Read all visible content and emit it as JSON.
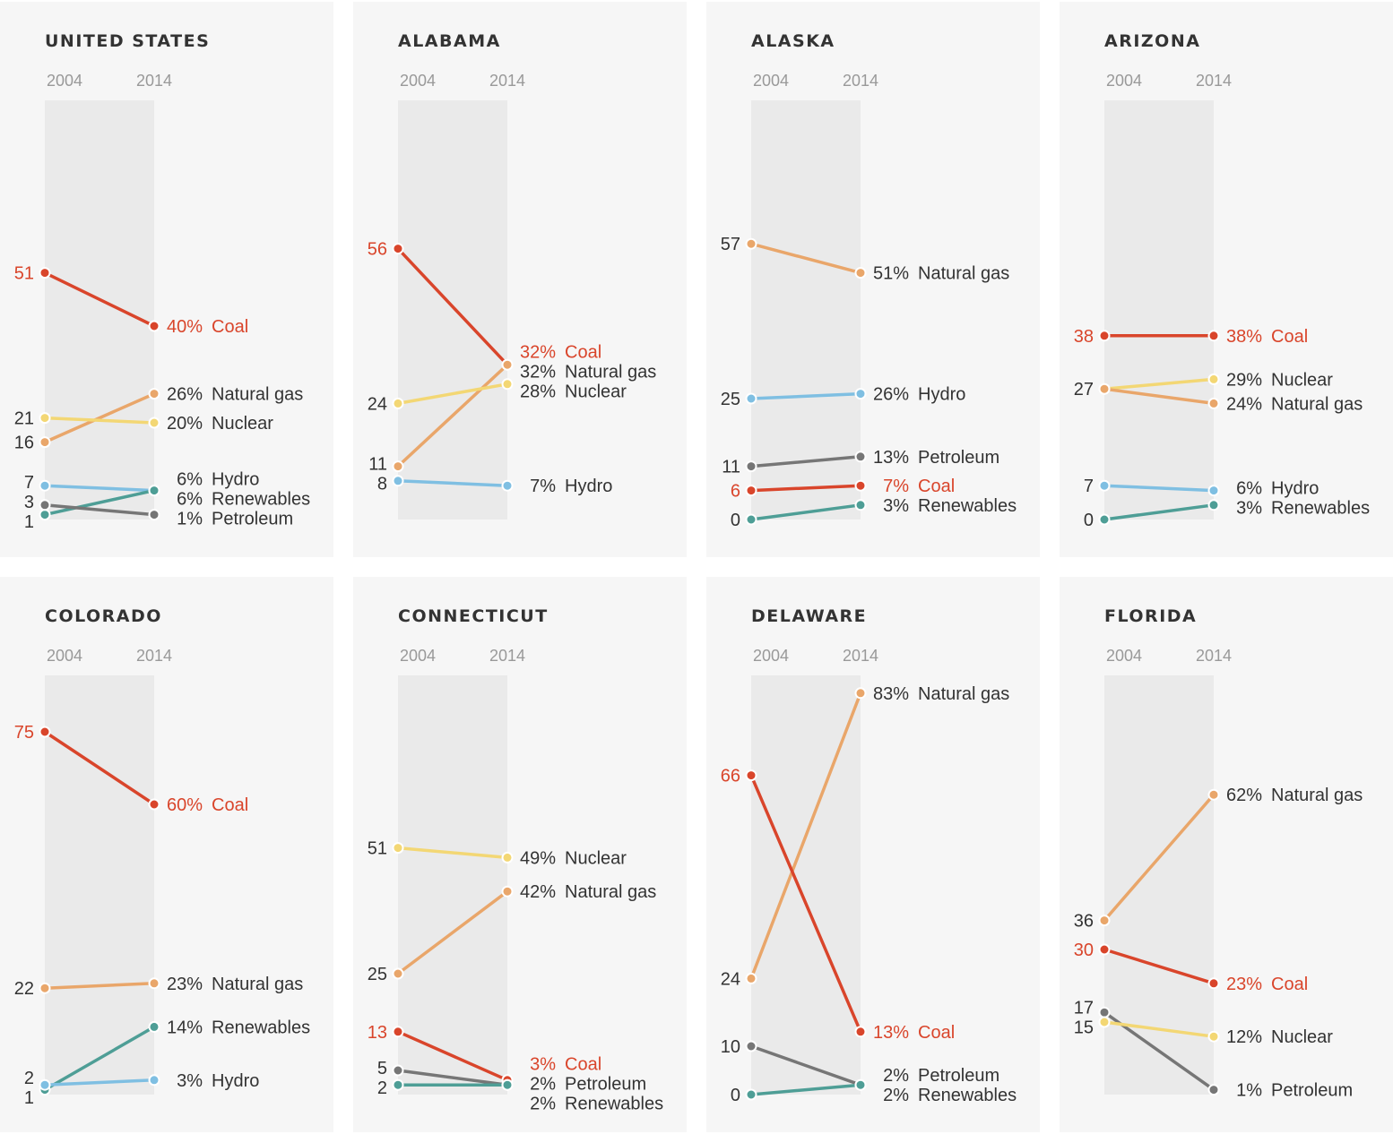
{
  "colors": {
    "Coal": "#d9452b",
    "Natural gas": "#e9a66a",
    "Nuclear": "#f3d774",
    "Hydro": "#7fbfe2",
    "Renewables": "#4e9e96",
    "Petroleum": "#767676",
    "text": "#333333",
    "muted": "#999999",
    "panel_bg": "#f6f6f6",
    "band_bg": "#eaeaea"
  },
  "chart_data": [
    {
      "type": "line",
      "title": "UNITED STATES",
      "x": [
        "2004",
        "2014"
      ],
      "series": [
        {
          "name": "Coal",
          "values": [
            51,
            40
          ],
          "start_label": "51",
          "end_label": "40%"
        },
        {
          "name": "Natural gas",
          "values": [
            16,
            26
          ],
          "start_label": "16",
          "end_label": "26%"
        },
        {
          "name": "Nuclear",
          "values": [
            21,
            20
          ],
          "start_label": "21",
          "end_label": "20%"
        },
        {
          "name": "Hydro",
          "values": [
            7,
            6
          ],
          "start_label": "7",
          "end_label": "6%"
        },
        {
          "name": "Renewables",
          "values": [
            1,
            6
          ],
          "start_label": "1",
          "end_label": "6%"
        },
        {
          "name": "Petroleum",
          "values": [
            3,
            1
          ],
          "start_label": "3",
          "end_label": "1%"
        }
      ]
    },
    {
      "type": "line",
      "title": "ALABAMA",
      "x": [
        "2004",
        "2014"
      ],
      "series": [
        {
          "name": "Coal",
          "values": [
            56,
            32
          ],
          "start_label": "56",
          "end_label": "32%"
        },
        {
          "name": "Natural gas",
          "values": [
            11,
            32
          ],
          "start_label": "11",
          "end_label": "32%"
        },
        {
          "name": "Nuclear",
          "values": [
            24,
            28
          ],
          "start_label": "24",
          "end_label": "28%"
        },
        {
          "name": "Hydro",
          "values": [
            8,
            7
          ],
          "start_label": "8",
          "end_label": "7%"
        }
      ]
    },
    {
      "type": "line",
      "title": "ALASKA",
      "x": [
        "2004",
        "2014"
      ],
      "series": [
        {
          "name": "Natural gas",
          "values": [
            57,
            51
          ],
          "start_label": "57",
          "end_label": "51%"
        },
        {
          "name": "Hydro",
          "values": [
            25,
            26
          ],
          "start_label": "25",
          "end_label": "26%"
        },
        {
          "name": "Petroleum",
          "values": [
            11,
            13
          ],
          "start_label": "11",
          "end_label": "13%"
        },
        {
          "name": "Coal",
          "values": [
            6,
            7
          ],
          "start_label": "6",
          "end_label": "7%"
        },
        {
          "name": "Renewables",
          "values": [
            0,
            3
          ],
          "start_label": "0",
          "end_label": "3%"
        }
      ]
    },
    {
      "type": "line",
      "title": "ARIZONA",
      "x": [
        "2004",
        "2014"
      ],
      "series": [
        {
          "name": "Coal",
          "values": [
            38,
            38
          ],
          "start_label": "38",
          "end_label": "38%"
        },
        {
          "name": "Nuclear",
          "values": [
            27,
            29
          ],
          "start_label": "27",
          "end_label": "29%"
        },
        {
          "name": "Natural gas",
          "values": [
            27,
            24
          ],
          "start_label": "",
          "end_label": "24%"
        },
        {
          "name": "Hydro",
          "values": [
            7,
            6
          ],
          "start_label": "7",
          "end_label": "6%"
        },
        {
          "name": "Renewables",
          "values": [
            0,
            3
          ],
          "start_label": "0",
          "end_label": "3%"
        }
      ]
    },
    {
      "type": "line",
      "title": "COLORADO",
      "x": [
        "2004",
        "2014"
      ],
      "series": [
        {
          "name": "Coal",
          "values": [
            75,
            60
          ],
          "start_label": "75",
          "end_label": "60%"
        },
        {
          "name": "Natural gas",
          "values": [
            22,
            23
          ],
          "start_label": "22",
          "end_label": "23%"
        },
        {
          "name": "Renewables",
          "values": [
            1,
            14
          ],
          "start_label": "1",
          "end_label": "14%"
        },
        {
          "name": "Hydro",
          "values": [
            2,
            3
          ],
          "start_label": "2",
          "end_label": "3%"
        }
      ]
    },
    {
      "type": "line",
      "title": "CONNECTICUT",
      "x": [
        "2004",
        "2014"
      ],
      "series": [
        {
          "name": "Nuclear",
          "values": [
            51,
            49
          ],
          "start_label": "51",
          "end_label": "49%"
        },
        {
          "name": "Natural gas",
          "values": [
            25,
            42
          ],
          "start_label": "25",
          "end_label": "42%"
        },
        {
          "name": "Coal",
          "values": [
            13,
            3
          ],
          "start_label": "13",
          "end_label": "3%"
        },
        {
          "name": "Petroleum",
          "values": [
            5,
            2
          ],
          "start_label": "5",
          "end_label": "2%"
        },
        {
          "name": "Renewables",
          "values": [
            2,
            2
          ],
          "start_label": "2",
          "end_label": "2%"
        }
      ]
    },
    {
      "type": "line",
      "title": "DELAWARE",
      "x": [
        "2004",
        "2014"
      ],
      "series": [
        {
          "name": "Natural gas",
          "values": [
            24,
            83
          ],
          "start_label": "24",
          "end_label": "83%"
        },
        {
          "name": "Coal",
          "values": [
            66,
            13
          ],
          "start_label": "66",
          "end_label": "13%"
        },
        {
          "name": "Petroleum",
          "values": [
            10,
            2
          ],
          "start_label": "10",
          "end_label": "2%"
        },
        {
          "name": "Renewables",
          "values": [
            0,
            2
          ],
          "start_label": "0",
          "end_label": "2%"
        }
      ]
    },
    {
      "type": "line",
      "title": "FLORIDA",
      "x": [
        "2004",
        "2014"
      ],
      "series": [
        {
          "name": "Natural gas",
          "values": [
            36,
            62
          ],
          "start_label": "36",
          "end_label": "62%"
        },
        {
          "name": "Coal",
          "values": [
            30,
            23
          ],
          "start_label": "30",
          "end_label": "23%"
        },
        {
          "name": "Petroleum",
          "values": [
            17,
            1
          ],
          "start_label": "17",
          "end_label": "1%"
        },
        {
          "name": "Nuclear",
          "values": [
            15,
            12
          ],
          "start_label": "15",
          "end_label": "12%"
        }
      ]
    }
  ]
}
